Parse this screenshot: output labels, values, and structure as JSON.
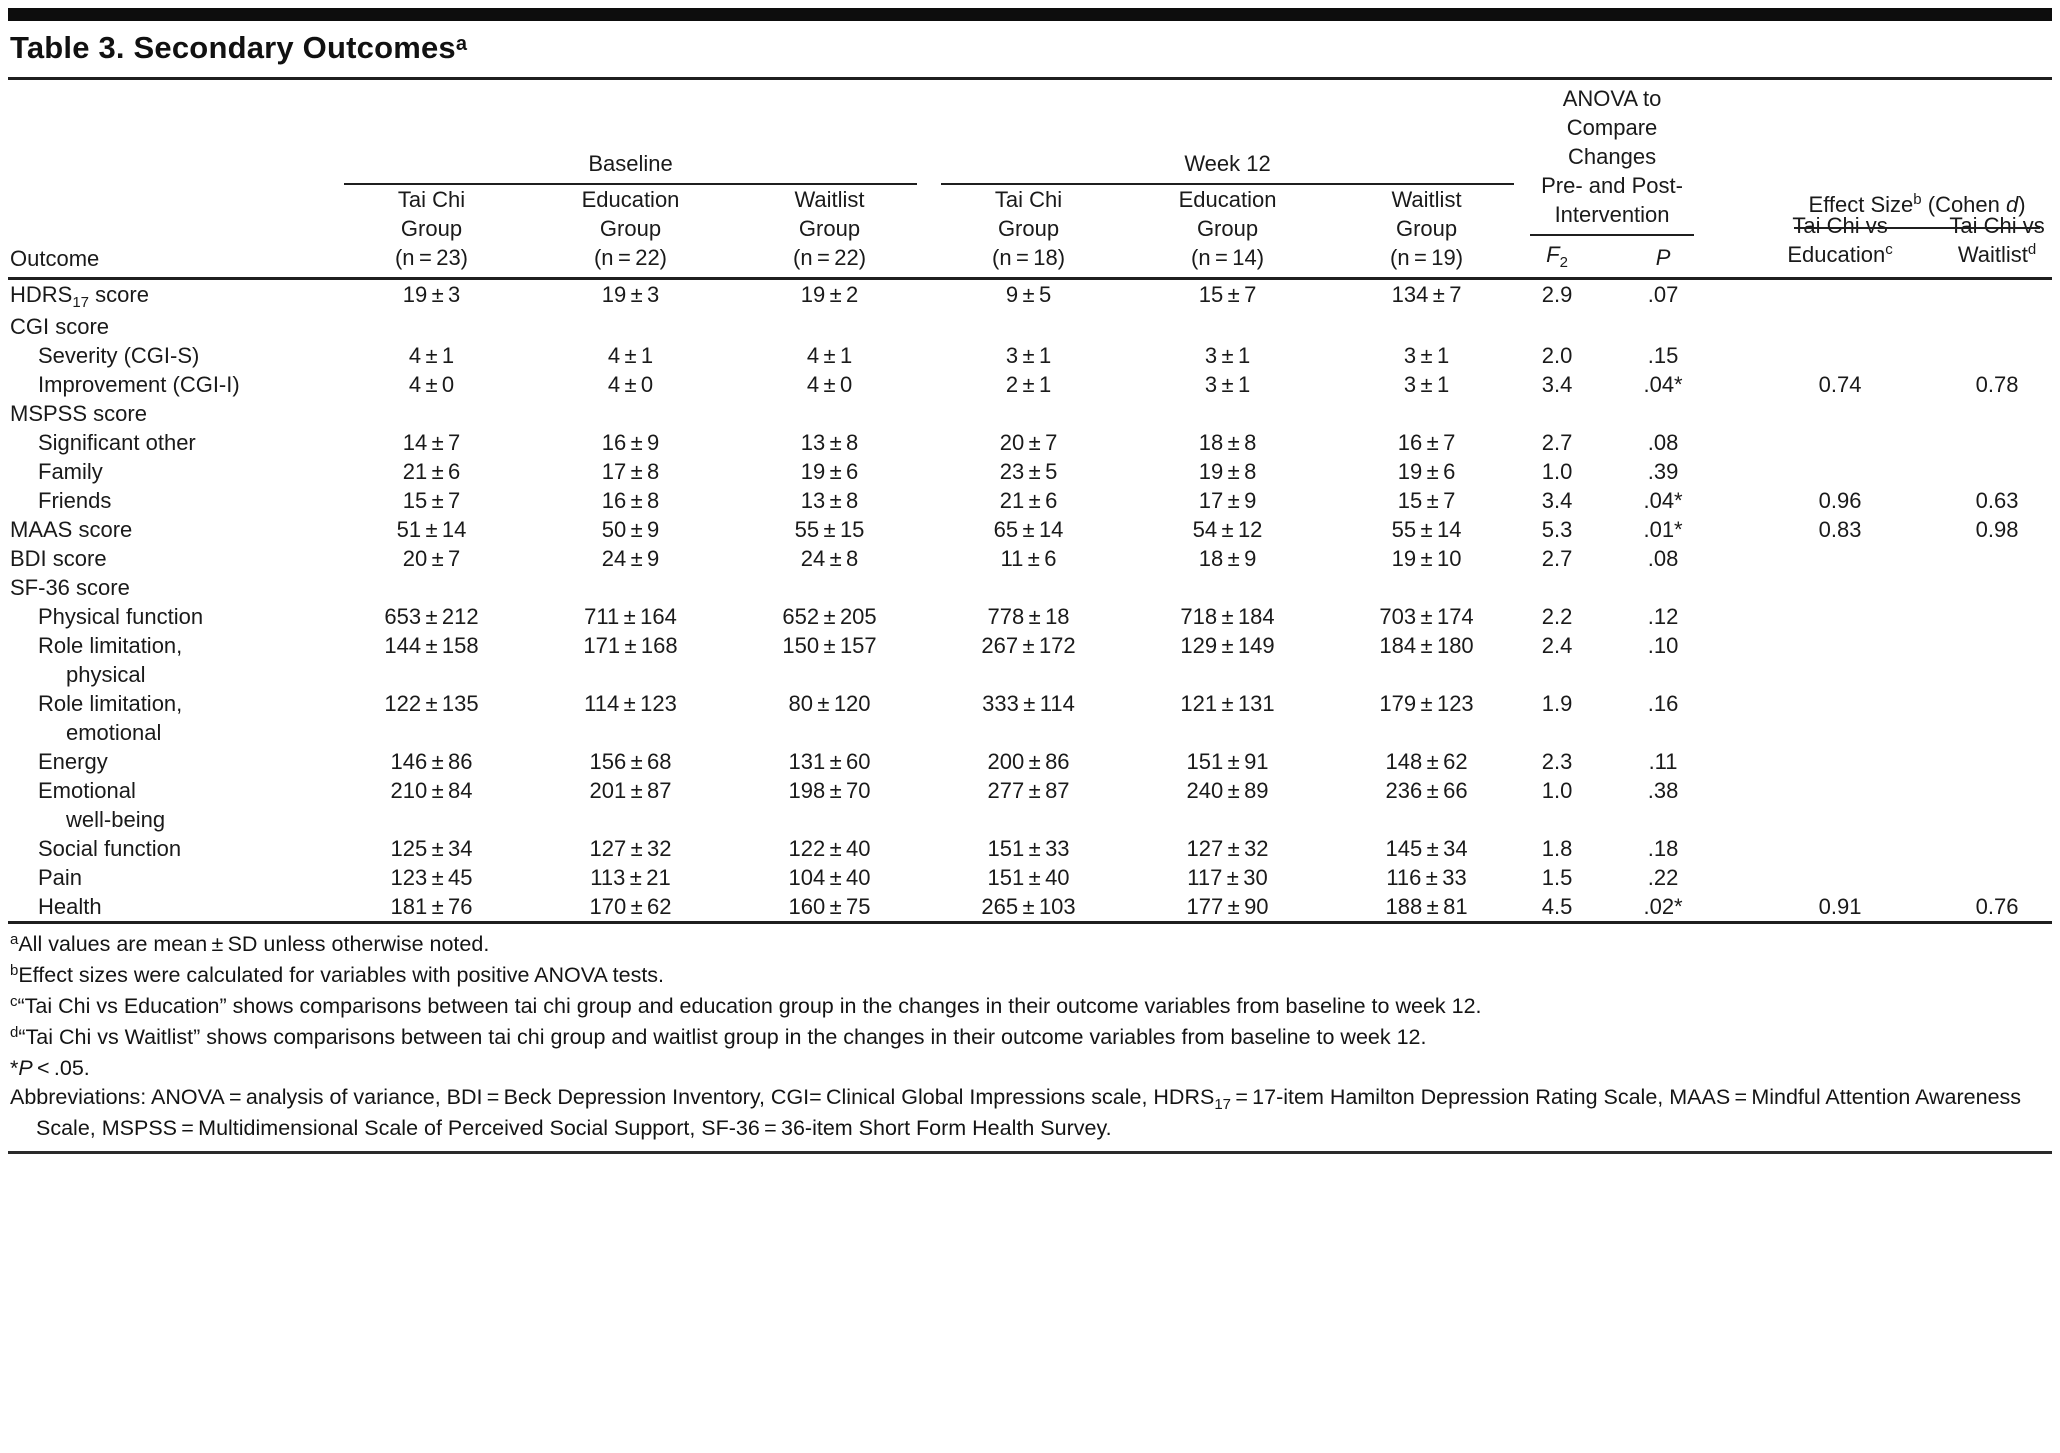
{
  "title_html": "Table 3. Secondary Outcomes<sup>a</sup>",
  "table": {
    "outcome_header": "Outcome",
    "groups": {
      "baseline_label": "Baseline",
      "week12_label": "Week 12",
      "anova_label": "ANOVA to\nCompare\nChanges\nPre- and Post-\nIntervention",
      "effect_label_html": "Effect Size<sup>b</sup> (Cohen <i>d</i>)"
    },
    "group_cols": [
      "Tai Chi\nGroup\n(n = 23)",
      "Education\nGroup\n(n = 22)",
      "Waitlist\nGroup\n(n = 22)",
      "Tai Chi\nGroup\n(n = 18)",
      "Education\nGroup\n(n = 14)",
      "Waitlist\nGroup\n(n = 19)"
    ],
    "f2_html": "<i>F</i><sub>2</sub>",
    "p_html": "<i>P</i>",
    "es_cols_html": [
      "Tai Chi vs<br>Education<sup>c</sup>",
      "Tai Chi vs<br>Waitlist<sup>d</sup>"
    ],
    "rows": [
      {
        "label": "HDRS<sub>17</sub> score",
        "indent": 0,
        "cells": [
          "19±3",
          "19±3",
          "19±2",
          "9±5",
          "15±7",
          "134±7",
          "2.9",
          ".07",
          "",
          ""
        ]
      },
      {
        "label": "CGI score",
        "indent": 0,
        "cells": []
      },
      {
        "label": "Severity (CGI-S)",
        "indent": 1,
        "cells": [
          "4±1",
          "4±1",
          "4±1",
          "3±1",
          "3±1",
          "3±1",
          "2.0",
          ".15",
          "",
          ""
        ]
      },
      {
        "label": "Improvement (CGI-I)",
        "indent": 1,
        "cells": [
          "4±0",
          "4±0",
          "4±0",
          "2±1",
          "3±1",
          "3±1",
          "3.4",
          ".04*",
          "0.74",
          "0.78"
        ]
      },
      {
        "label": "MSPSS score",
        "indent": 0,
        "cells": []
      },
      {
        "label": "Significant other",
        "indent": 1,
        "cells": [
          "14±7",
          "16±9",
          "13±8",
          "20±7",
          "18±8",
          "16±7",
          "2.7",
          ".08",
          "",
          ""
        ]
      },
      {
        "label": "Family",
        "indent": 1,
        "cells": [
          "21±6",
          "17±8",
          "19±6",
          "23±5",
          "19±8",
          "19±6",
          "1.0",
          ".39",
          "",
          ""
        ]
      },
      {
        "label": "Friends",
        "indent": 1,
        "cells": [
          "15±7",
          "16±8",
          "13±8",
          "21±6",
          "17±9",
          "15±7",
          "3.4",
          ".04*",
          "0.96",
          "0.63"
        ]
      },
      {
        "label": "MAAS score",
        "indent": 0,
        "cells": [
          "51±14",
          "50±9",
          "55±15",
          "65±14",
          "54±12",
          "55±14",
          "5.3",
          ".01*",
          "0.83",
          "0.98"
        ]
      },
      {
        "label": "BDI score",
        "indent": 0,
        "cells": [
          "20±7",
          "24±9",
          "24±8",
          "11±6",
          "18±9",
          "19±10",
          "2.7",
          ".08",
          "",
          ""
        ]
      },
      {
        "label": "SF-36 score",
        "indent": 0,
        "cells": []
      },
      {
        "label": "Physical function",
        "indent": 1,
        "cells": [
          "653±212",
          "711±164",
          "652±205",
          "778±18",
          "718±184",
          "703±174",
          "2.2",
          ".12",
          "",
          ""
        ]
      },
      {
        "label": "Role limitation,\nphysical",
        "indent": 1,
        "cells": [
          "144±158",
          "171±168",
          "150±157",
          "267±172",
          "129±149",
          "184±180",
          "2.4",
          ".10",
          "",
          ""
        ]
      },
      {
        "label": "Role limitation,\nemotional",
        "indent": 1,
        "cells": [
          "122±135",
          "114±123",
          "80±120",
          "333±114",
          "121±131",
          "179±123",
          "1.9",
          ".16",
          "",
          ""
        ]
      },
      {
        "label": "Energy",
        "indent": 1,
        "cells": [
          "146±86",
          "156±68",
          "131±60",
          "200±86",
          "151±91",
          "148±62",
          "2.3",
          ".11",
          "",
          ""
        ]
      },
      {
        "label": "Emotional\nwell-being",
        "indent": 1,
        "cells": [
          "210±84",
          "201±87",
          "198±70",
          "277±87",
          "240±89",
          "236±66",
          "1.0",
          ".38",
          "",
          ""
        ]
      },
      {
        "label": "Social function",
        "indent": 1,
        "cells": [
          "125±34",
          "127±32",
          "122±40",
          "151±33",
          "127±32",
          "145±34",
          "1.8",
          ".18",
          "",
          ""
        ]
      },
      {
        "label": "Pain",
        "indent": 1,
        "cells": [
          "123±45",
          "113±21",
          "104±40",
          "151±40",
          "117±30",
          "116±33",
          "1.5",
          ".22",
          "",
          ""
        ]
      },
      {
        "label": "Health",
        "indent": 1,
        "cells": [
          "181±76",
          "170±62",
          "160±75",
          "265±103",
          "177±90",
          "188±81",
          "4.5",
          ".02*",
          "0.91",
          "0.76"
        ]
      }
    ]
  },
  "footnotes": [
    "<sup>a</sup>All values are mean ± SD unless otherwise noted.",
    "<sup>b</sup>Effect sizes were calculated for variables with positive ANOVA tests.",
    "<sup>c</sup>“Tai Chi vs Education” shows comparisons between tai chi group and education group in the changes in their outcome variables from baseline to week 12.",
    "<sup>d</sup>“Tai Chi vs Waitlist” shows comparisons between tai chi group and waitlist group in the changes in their outcome variables from baseline to week 12.",
    "*<i>P</i> &lt; .05.",
    "Abbreviations: ANOVA = analysis of variance, BDI = Beck Depression Inventory, CGI= Clinical Global Impressions scale, HDRS<sub>17</sub> = 17-item Hamilton Depression Rating Scale, MAAS = Mindful Attention Awareness Scale, MSPSS = Multidimensional Scale of Perceived Social Support, SF-36 = 36-item Short Form Health Survey."
  ]
}
